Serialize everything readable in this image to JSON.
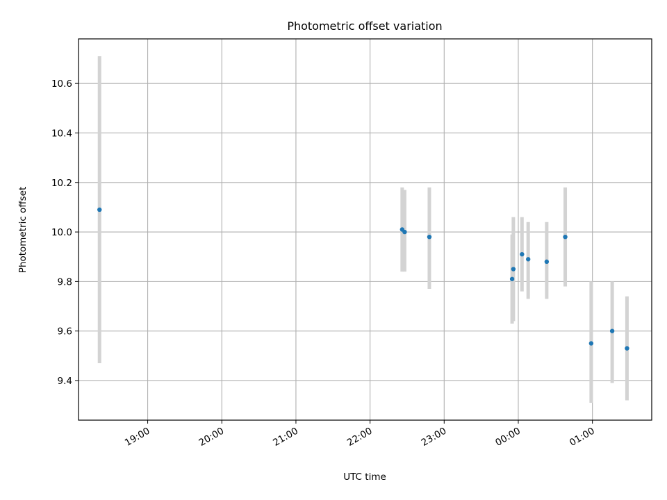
{
  "chart_data": {
    "type": "scatter",
    "title": "Photometric offset variation",
    "xlabel": "UTC time",
    "ylabel": "Photometric offset",
    "grid": true,
    "x_axis_type": "time",
    "x_ticks": [
      "19:00",
      "20:00",
      "21:00",
      "22:00",
      "23:00",
      "00:00",
      "01:00"
    ],
    "y_ticks": [
      9.4,
      9.6,
      9.8,
      10.0,
      10.2,
      10.4,
      10.6
    ],
    "y_tick_labels": [
      "9.4",
      "9.6",
      "9.8",
      "10.0",
      "10.2",
      "10.4",
      "10.6"
    ],
    "xlim": [
      "18:04",
      "01:48"
    ],
    "ylim": [
      9.24,
      10.78
    ],
    "colors": {
      "points": "#1f77b4",
      "errorbars": "#d3d3d3",
      "grid": "#b0b0b0"
    },
    "series": [
      {
        "points": [
          {
            "x": "18:21",
            "y": 10.09,
            "err_low": 9.47,
            "err_high": 10.71
          },
          {
            "x": "22:26",
            "y": 10.01,
            "err_low": 9.84,
            "err_high": 10.18
          },
          {
            "x": "22:28",
            "y": 10.0,
            "err_low": 9.84,
            "err_high": 10.17
          },
          {
            "x": "22:48",
            "y": 9.98,
            "err_low": 9.77,
            "err_high": 10.18
          },
          {
            "x": "23:55",
            "y": 9.81,
            "err_low": 9.63,
            "err_high": 9.99
          },
          {
            "x": "23:56",
            "y": 9.85,
            "err_low": 9.64,
            "err_high": 10.06
          },
          {
            "x": "00:03",
            "y": 9.91,
            "err_low": 9.76,
            "err_high": 10.06
          },
          {
            "x": "00:08",
            "y": 9.89,
            "err_low": 9.73,
            "err_high": 10.04
          },
          {
            "x": "00:23",
            "y": 9.88,
            "err_low": 9.73,
            "err_high": 10.04
          },
          {
            "x": "00:38",
            "y": 9.98,
            "err_low": 9.78,
            "err_high": 10.18
          },
          {
            "x": "00:59",
            "y": 9.55,
            "err_low": 9.31,
            "err_high": 9.8
          },
          {
            "x": "01:16",
            "y": 9.6,
            "err_low": 9.39,
            "err_high": 9.8
          },
          {
            "x": "01:28",
            "y": 9.53,
            "err_low": 9.32,
            "err_high": 9.74
          }
        ]
      }
    ]
  }
}
